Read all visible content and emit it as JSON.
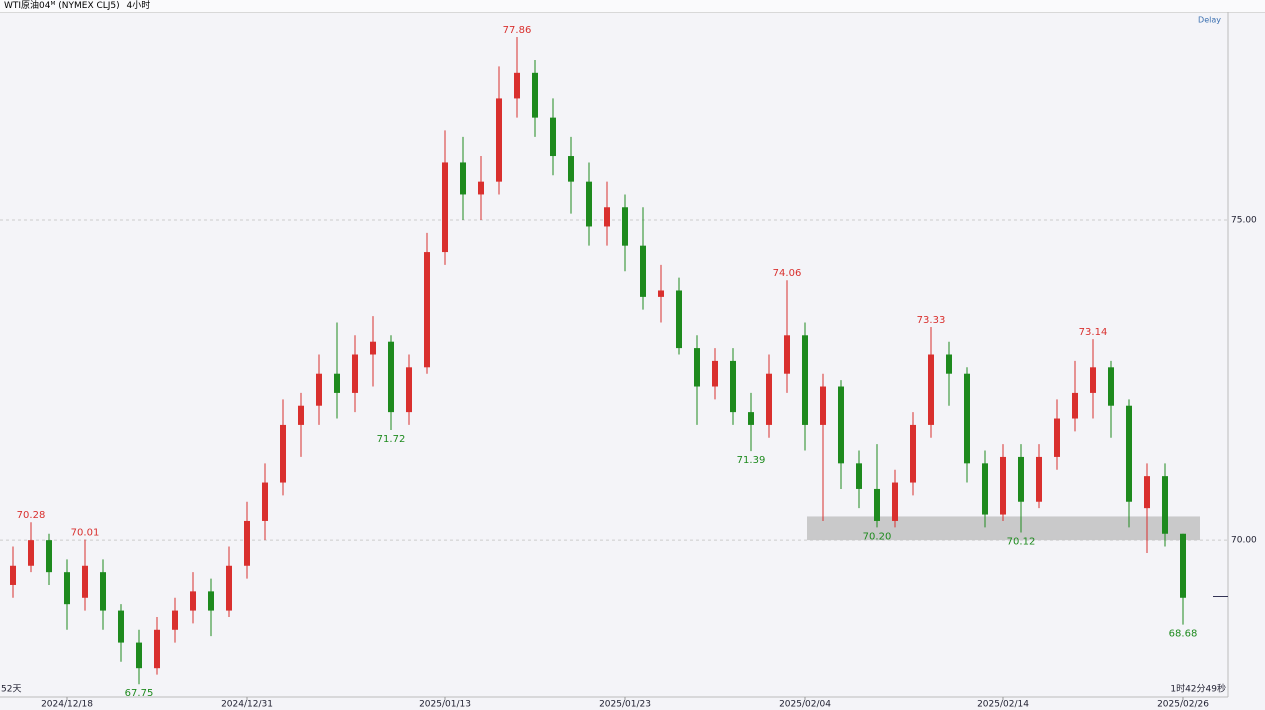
{
  "header": {
    "symbol": "WTI原油04ᴹ (NYMEX CLJ5)",
    "interval": "4小时"
  },
  "chart_data": {
    "type": "candlestick",
    "delay_label": "Delay",
    "range_label": "52天",
    "timer_label": "1时42分49秒",
    "up_color": "#d9302e",
    "down_color": "#1e8a1e",
    "ylim": [
      67.55,
      78.25
    ],
    "yticks": [
      {
        "value": 75,
        "label": "75.00"
      },
      {
        "value": 70,
        "label": "70.00"
      }
    ],
    "grid": true,
    "band": [
      70,
      70.37
    ],
    "last_price": 69.12,
    "categories": [
      null,
      null,
      null,
      "2024/12/18",
      null,
      null,
      null,
      null,
      null,
      null,
      null,
      null,
      null,
      "2024/12/31",
      null,
      null,
      null,
      null,
      null,
      null,
      null,
      null,
      null,
      null,
      "2025/01/13",
      null,
      null,
      null,
      null,
      null,
      null,
      null,
      null,
      null,
      "2025/01/23",
      null,
      null,
      null,
      null,
      null,
      null,
      null,
      null,
      null,
      "2025/02/04",
      null,
      null,
      null,
      null,
      null,
      null,
      null,
      null,
      null,
      null,
      "2025/02/14",
      null,
      null,
      null,
      null,
      null,
      null,
      null,
      null,
      null,
      "2025/02/26"
    ],
    "series": {
      "open": [
        69.3,
        69.6,
        70.0,
        69.5,
        69.1,
        69.5,
        68.9,
        68.4,
        68.0,
        68.6,
        68.9,
        69.2,
        68.9,
        69.6,
        70.3,
        70.9,
        71.8,
        72.1,
        72.6,
        72.3,
        72.9,
        73.1,
        72.0,
        72.7,
        74.5,
        75.9,
        75.4,
        75.6,
        76.9,
        77.3,
        76.6,
        76.0,
        75.6,
        74.9,
        75.2,
        74.6,
        73.8,
        73.9,
        73.0,
        72.4,
        72.8,
        72.0,
        71.8,
        72.6,
        73.2,
        71.8,
        72.4,
        71.2,
        70.8,
        70.3,
        70.9,
        71.8,
        72.9,
        72.6,
        71.2,
        70.4,
        71.3,
        70.6,
        71.3,
        71.9,
        72.3,
        72.7,
        72.1,
        70.5,
        71.0,
        70.1
      ],
      "high": [
        69.9,
        70.28,
        70.1,
        69.7,
        70.01,
        69.7,
        69.0,
        68.6,
        68.8,
        69.1,
        69.5,
        69.4,
        69.9,
        70.6,
        71.2,
        72.2,
        72.3,
        72.9,
        73.4,
        73.2,
        73.5,
        73.2,
        72.9,
        74.8,
        76.4,
        76.3,
        76.0,
        77.4,
        77.86,
        77.5,
        76.9,
        76.3,
        75.9,
        75.6,
        75.4,
        75.2,
        74.3,
        74.1,
        73.2,
        73.0,
        73.0,
        72.3,
        72.9,
        74.06,
        73.4,
        72.6,
        72.5,
        71.4,
        71.5,
        71.1,
        72.0,
        73.33,
        73.1,
        72.7,
        71.4,
        71.5,
        71.5,
        71.5,
        72.2,
        72.8,
        73.14,
        72.8,
        72.2,
        71.2,
        71.2,
        70.1
      ],
      "low": [
        69.1,
        69.5,
        69.3,
        68.6,
        68.9,
        68.6,
        68.1,
        67.75,
        67.9,
        68.4,
        68.7,
        68.5,
        68.8,
        69.4,
        70.0,
        70.7,
        71.3,
        71.8,
        71.9,
        72.0,
        72.4,
        71.72,
        71.8,
        72.6,
        74.3,
        75.0,
        75.0,
        75.4,
        76.6,
        76.3,
        75.7,
        75.1,
        74.6,
        74.6,
        74.2,
        73.6,
        73.4,
        72.9,
        71.8,
        72.2,
        71.8,
        71.39,
        71.6,
        72.3,
        71.4,
        70.3,
        70.8,
        70.5,
        70.2,
        70.2,
        70.7,
        71.6,
        72.1,
        70.9,
        70.2,
        70.3,
        70.12,
        70.5,
        71.1,
        71.7,
        71.9,
        71.6,
        70.2,
        69.8,
        69.9,
        68.68
      ],
      "close": [
        69.6,
        70.0,
        69.5,
        69.0,
        69.6,
        68.9,
        68.4,
        68.0,
        68.6,
        68.9,
        69.2,
        68.9,
        69.6,
        70.3,
        70.9,
        71.8,
        72.1,
        72.6,
        72.3,
        72.9,
        73.1,
        72.0,
        72.7,
        74.5,
        75.9,
        75.4,
        75.6,
        76.9,
        77.3,
        76.6,
        76.0,
        75.6,
        74.9,
        75.2,
        74.6,
        73.8,
        73.9,
        73.0,
        72.4,
        72.8,
        72.0,
        71.8,
        72.6,
        73.2,
        71.8,
        72.4,
        71.2,
        70.8,
        70.3,
        70.9,
        71.8,
        72.9,
        72.6,
        71.2,
        70.4,
        71.3,
        70.6,
        71.3,
        71.9,
        72.3,
        72.7,
        72.1,
        70.6,
        71.0,
        70.1,
        69.1
      ]
    },
    "high_labels": [
      null,
      "70.28",
      null,
      null,
      "70.01",
      null,
      null,
      null,
      null,
      null,
      null,
      null,
      null,
      null,
      null,
      null,
      null,
      null,
      null,
      null,
      null,
      null,
      null,
      null,
      null,
      null,
      null,
      null,
      "77.86",
      null,
      null,
      null,
      null,
      null,
      null,
      null,
      null,
      null,
      null,
      null,
      null,
      null,
      null,
      "74.06",
      null,
      null,
      null,
      null,
      null,
      null,
      null,
      "73.33",
      null,
      null,
      null,
      null,
      null,
      null,
      null,
      null,
      "73.14",
      null,
      null,
      null,
      null,
      null
    ],
    "low_labels": [
      null,
      null,
      null,
      null,
      null,
      null,
      null,
      "67.75",
      null,
      null,
      null,
      null,
      null,
      null,
      null,
      null,
      null,
      null,
      null,
      null,
      null,
      "71.72",
      null,
      null,
      null,
      null,
      null,
      null,
      null,
      null,
      null,
      null,
      null,
      null,
      null,
      null,
      null,
      null,
      null,
      null,
      null,
      "71.39",
      null,
      null,
      null,
      null,
      null,
      null,
      "70.20",
      null,
      null,
      null,
      null,
      null,
      null,
      null,
      "70.12",
      null,
      null,
      null,
      null,
      null,
      null,
      null,
      null,
      "68.68"
    ]
  }
}
